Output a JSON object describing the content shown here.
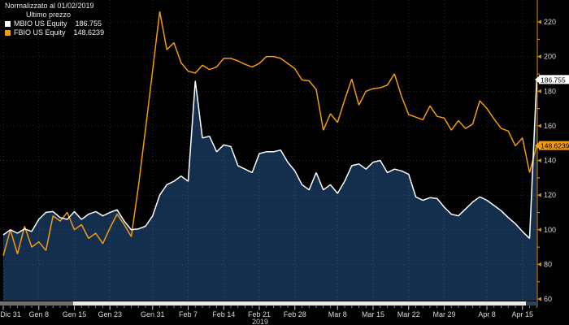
{
  "legend": {
    "title": "Normalizzato al 01/02/2019",
    "subtitle": "Ultimo prezzo",
    "series": [
      {
        "label": "MBIO US Equity",
        "value": "186.755"
      },
      {
        "label": "FBIO US Equity",
        "value": "148.6239"
      }
    ]
  },
  "chart_data": {
    "type": "line",
    "title": "Normalizzato al 01/02/2019",
    "subtitle": "Ultimo prezzo",
    "legend_position": "top-left",
    "grid": "dotted",
    "background": "#000000",
    "y_axis": {
      "side": "right",
      "ticks": [
        220,
        200,
        180,
        160,
        140,
        120,
        100,
        80,
        60
      ],
      "range": [
        60,
        230
      ]
    },
    "x_axis": {
      "year_label": "2019",
      "ticks": [
        {
          "label": "Dic 31",
          "day": 0
        },
        {
          "label": "Gen 8",
          "day": 5
        },
        {
          "label": "Gen 15",
          "day": 10
        },
        {
          "label": "Gen 23",
          "day": 15
        },
        {
          "label": "Gen 31",
          "day": 21
        },
        {
          "label": "Feb 7",
          "day": 26
        },
        {
          "label": "Feb 14",
          "day": 31
        },
        {
          "label": "Feb 21",
          "day": 36
        },
        {
          "label": "Feb 28",
          "day": 41
        },
        {
          "label": "Mar 8",
          "day": 47
        },
        {
          "label": "Mar 15",
          "day": 52
        },
        {
          "label": "Mar 22",
          "day": 57
        },
        {
          "label": "Mar 29",
          "day": 62
        },
        {
          "label": "Apr 8",
          "day": 68
        },
        {
          "label": "Apr 15",
          "day": 73
        }
      ]
    },
    "series": [
      {
        "name": "MBIO US Equity",
        "color": "#ffffff",
        "fill": "#142f4d",
        "last_value": 186.755,
        "last_label": "186.755",
        "values": [
          97,
          100,
          98,
          100.5,
          99,
          106,
          110,
          110.5,
          107,
          106,
          110.5,
          106,
          109,
          110.5,
          108,
          110,
          111.5,
          105,
          100,
          100.5,
          102,
          108,
          120,
          126,
          128,
          131,
          128,
          186,
          153,
          154,
          145,
          149,
          148,
          137,
          135,
          133,
          144,
          145,
          145,
          146,
          139,
          134,
          126,
          123,
          133,
          123,
          126,
          121,
          128,
          137,
          138,
          135,
          139,
          140,
          133,
          135,
          134,
          132,
          119,
          117,
          118.5,
          118,
          113,
          109,
          108,
          112,
          116,
          119,
          117,
          114,
          111,
          107,
          103.5,
          99,
          95,
          186.755
        ]
      },
      {
        "name": "FBIO US Equity",
        "color": "#f39a13",
        "fill": null,
        "last_value": 148.6239,
        "last_label": "148.6239",
        "values": [
          85,
          100,
          86,
          102,
          90,
          93,
          88,
          108,
          105,
          110,
          100,
          103,
          95,
          98,
          92,
          101,
          109,
          103,
          96,
          125,
          158,
          192,
          226,
          204,
          208,
          196.5,
          191.5,
          190.5,
          195,
          192.5,
          194,
          199,
          199,
          197.5,
          195.5,
          194,
          196,
          200,
          200,
          199,
          196,
          193,
          186.5,
          186,
          181,
          157.5,
          167,
          162,
          175,
          187,
          172,
          180,
          181.5,
          182,
          183.5,
          190,
          177,
          166.5,
          165,
          163.5,
          171.5,
          165.5,
          164.5,
          157.5,
          163,
          158.5,
          161,
          174.5,
          170,
          164,
          158.5,
          157,
          148.5,
          153,
          133,
          148.6239
        ]
      }
    ],
    "colors": {
      "axis": "#d98c0e",
      "tick_text": "#d9d9d9",
      "grid": "rgba(150,150,150,0.28)",
      "badge_text": "#000000"
    }
  }
}
